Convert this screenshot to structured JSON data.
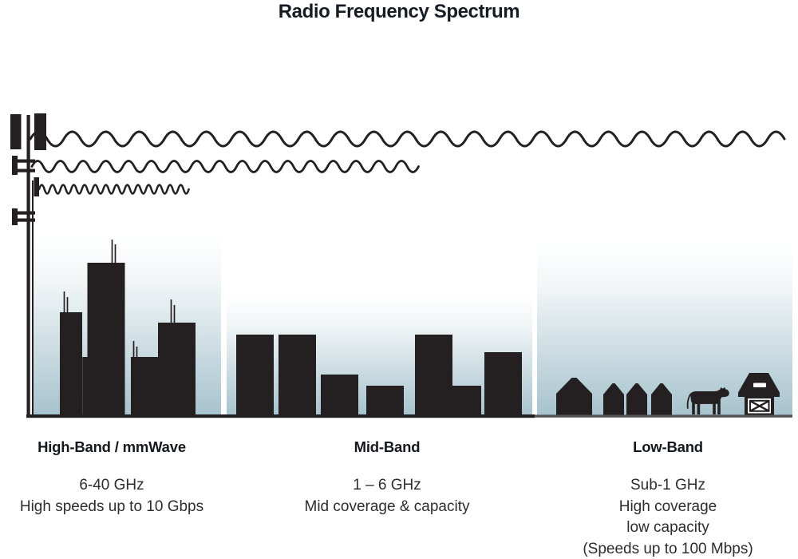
{
  "title": "Radio Frequency Spectrum",
  "bands": [
    {
      "id": "high-band",
      "heading": "High-Band / mmWave",
      "lines": [
        "6-40 GHz",
        "High speeds up to 10 Gbps"
      ]
    },
    {
      "id": "mid-band",
      "heading": "Mid-Band",
      "lines": [
        "1 – 6 GHz",
        "Mid coverage & capacity"
      ]
    },
    {
      "id": "low-band",
      "heading": "Low-Band",
      "lines": [
        "Sub-1 GHz",
        "High coverage",
        "low capacity",
        "(Speeds up to 100 Mbps)"
      ]
    }
  ],
  "icons": {
    "tower": "cell-tower-icon",
    "wave_top": "low-frequency-long-wave-icon",
    "wave_middle": "mid-frequency-wave-icon",
    "wave_bottom": "high-frequency-short-wave-icon",
    "high_band_scene": "city-skyscrapers-icon",
    "mid_band_scene": "city-buildings-icon",
    "low_band_scene": "rural-houses-icon",
    "cow": "cow-icon",
    "barn": "barn-icon"
  },
  "colors": {
    "ink": "#241f20",
    "title_text": "#171b24",
    "body_text": "#2d2d30",
    "heading_text": "#16181e",
    "sky_gradient_top": "#ffffff",
    "sky_gradient_bottom": "#a7c3ce",
    "rural_ground": "#505153"
  }
}
